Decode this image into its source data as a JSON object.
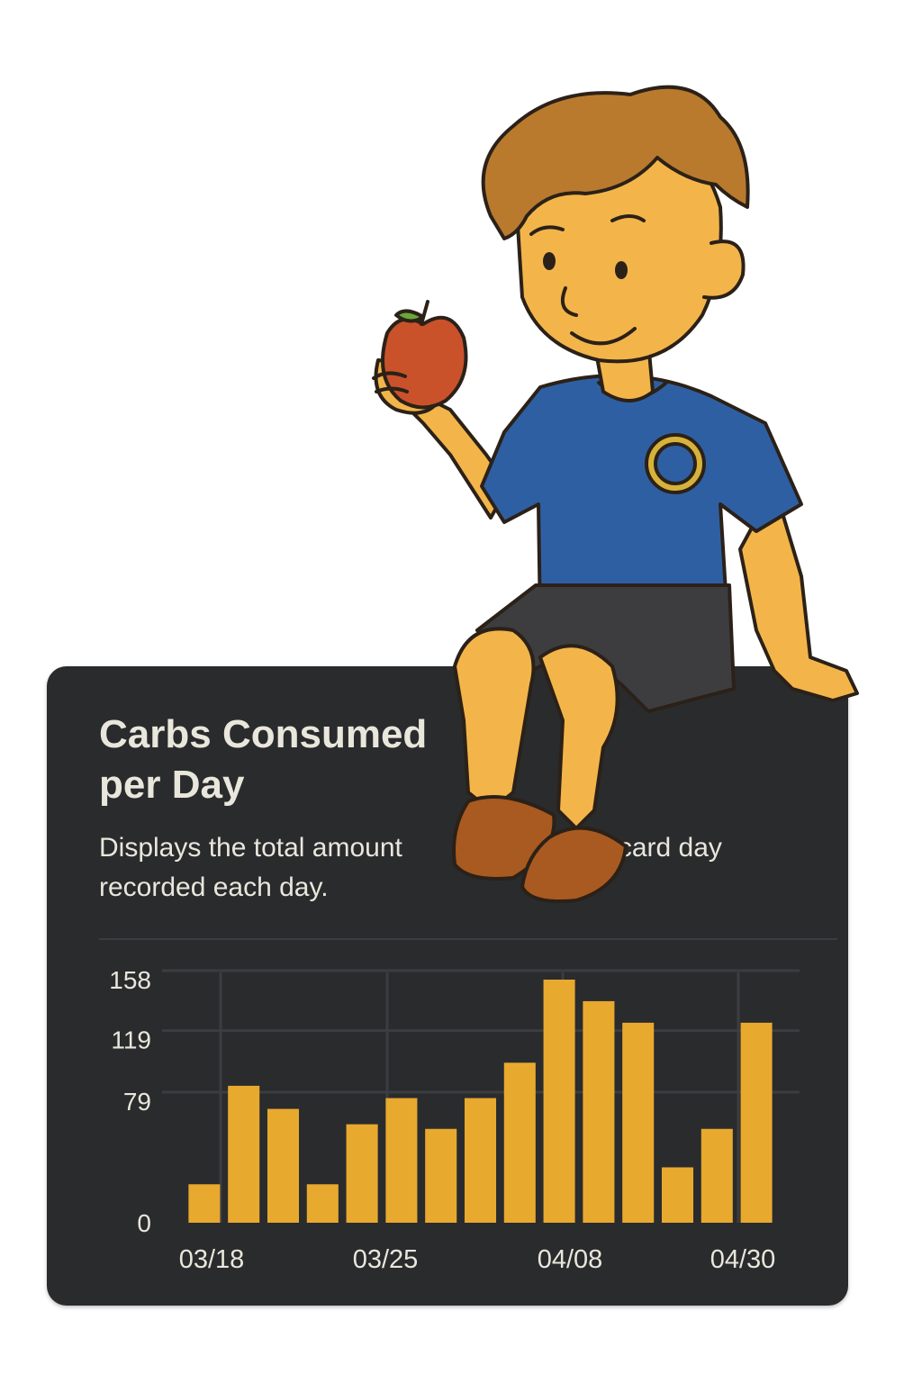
{
  "card": {
    "title_line1": "Carbs Consumed",
    "title_line2": "per Day",
    "desc_line1": "Displays the total amount",
    "desc_line1_tail": "ercard day",
    "desc_line2": "recorded each day."
  },
  "colors": {
    "card_bg": "#2a2b2d",
    "bar": "#e8a92f",
    "text": "#e9e6dc",
    "grid": "#3c3d40"
  },
  "chart_data": {
    "type": "bar",
    "title": "Carbs Consumed per Day",
    "xlabel": "",
    "ylabel": "",
    "ylim": [
      0,
      158
    ],
    "y_ticks": [
      0,
      79,
      119,
      158
    ],
    "x_tick_labels": [
      "03/18",
      "03/25",
      "04/08",
      "04/30"
    ],
    "values": [
      25,
      89,
      74,
      25,
      64,
      81,
      61,
      81,
      104,
      158,
      144,
      130,
      36,
      61,
      130
    ],
    "grid": true,
    "legend": "none"
  },
  "illustration": {
    "subject": "cartoon boy sitting on the card holding an apple",
    "icons": [
      "apple-icon",
      "shirt-emblem-icon"
    ]
  }
}
